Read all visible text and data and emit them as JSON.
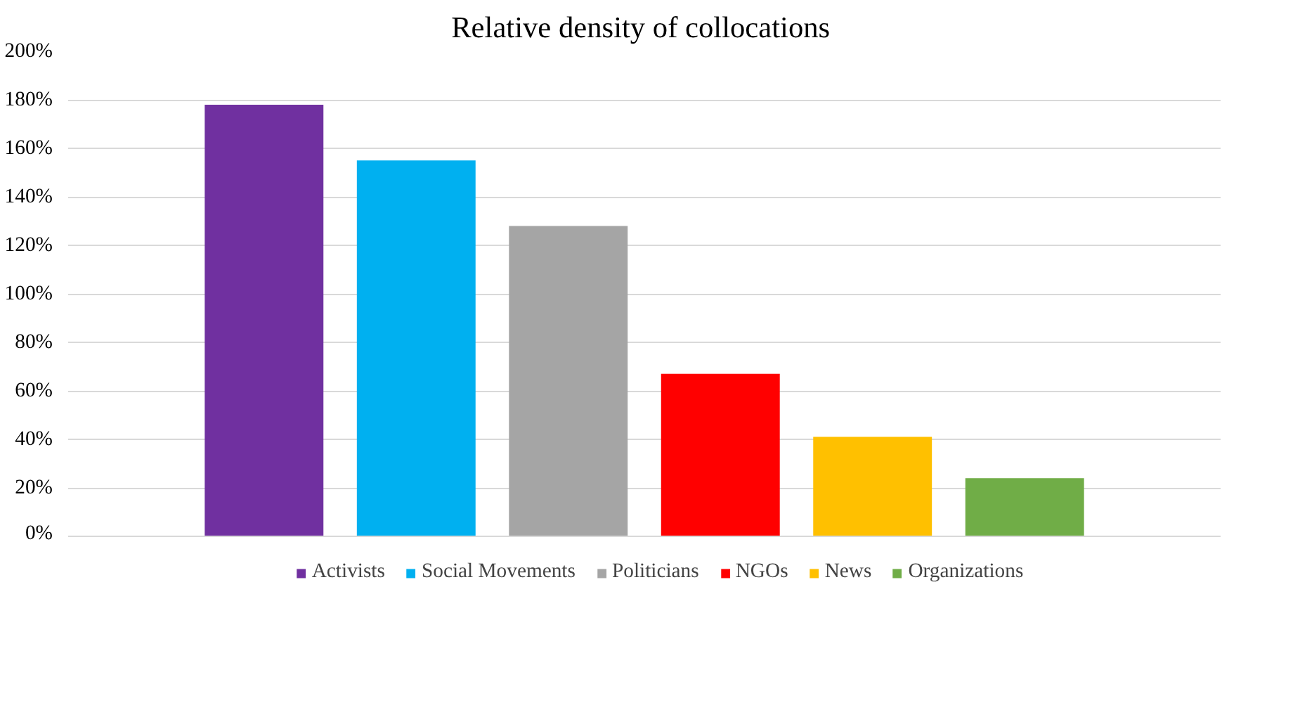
{
  "chart_data": {
    "type": "bar",
    "title": "Relative  density of collocations",
    "categories": [
      null
    ],
    "series": [
      {
        "name": "Activists",
        "color": "#7030a0",
        "values": [
          178
        ]
      },
      {
        "name": "Social Movements",
        "color": "#00b0f0",
        "values": [
          155
        ]
      },
      {
        "name": "Politicians",
        "color": "#a5a5a5",
        "values": [
          128
        ]
      },
      {
        "name": "NGOs",
        "color": "#ff0000",
        "values": [
          67
        ]
      },
      {
        "name": "News",
        "color": "#ffc000",
        "values": [
          41
        ]
      },
      {
        "name": "Organizations",
        "color": "#70ad47",
        "values": [
          24
        ]
      }
    ],
    "ylim": [
      0,
      200
    ],
    "yticks": [
      {
        "value": 0,
        "label": "0%"
      },
      {
        "value": 20,
        "label": "20%"
      },
      {
        "value": 40,
        "label": "40%"
      },
      {
        "value": 60,
        "label": "60%"
      },
      {
        "value": 80,
        "label": "80%"
      },
      {
        "value": 100,
        "label": "100%"
      },
      {
        "value": 120,
        "label": "120%"
      },
      {
        "value": 140,
        "label": "140%"
      },
      {
        "value": 160,
        "label": "160%"
      },
      {
        "value": 180,
        "label": "180%"
      },
      {
        "value": 200,
        "label": "200%"
      }
    ],
    "grid": "y",
    "legend": "bottom"
  }
}
